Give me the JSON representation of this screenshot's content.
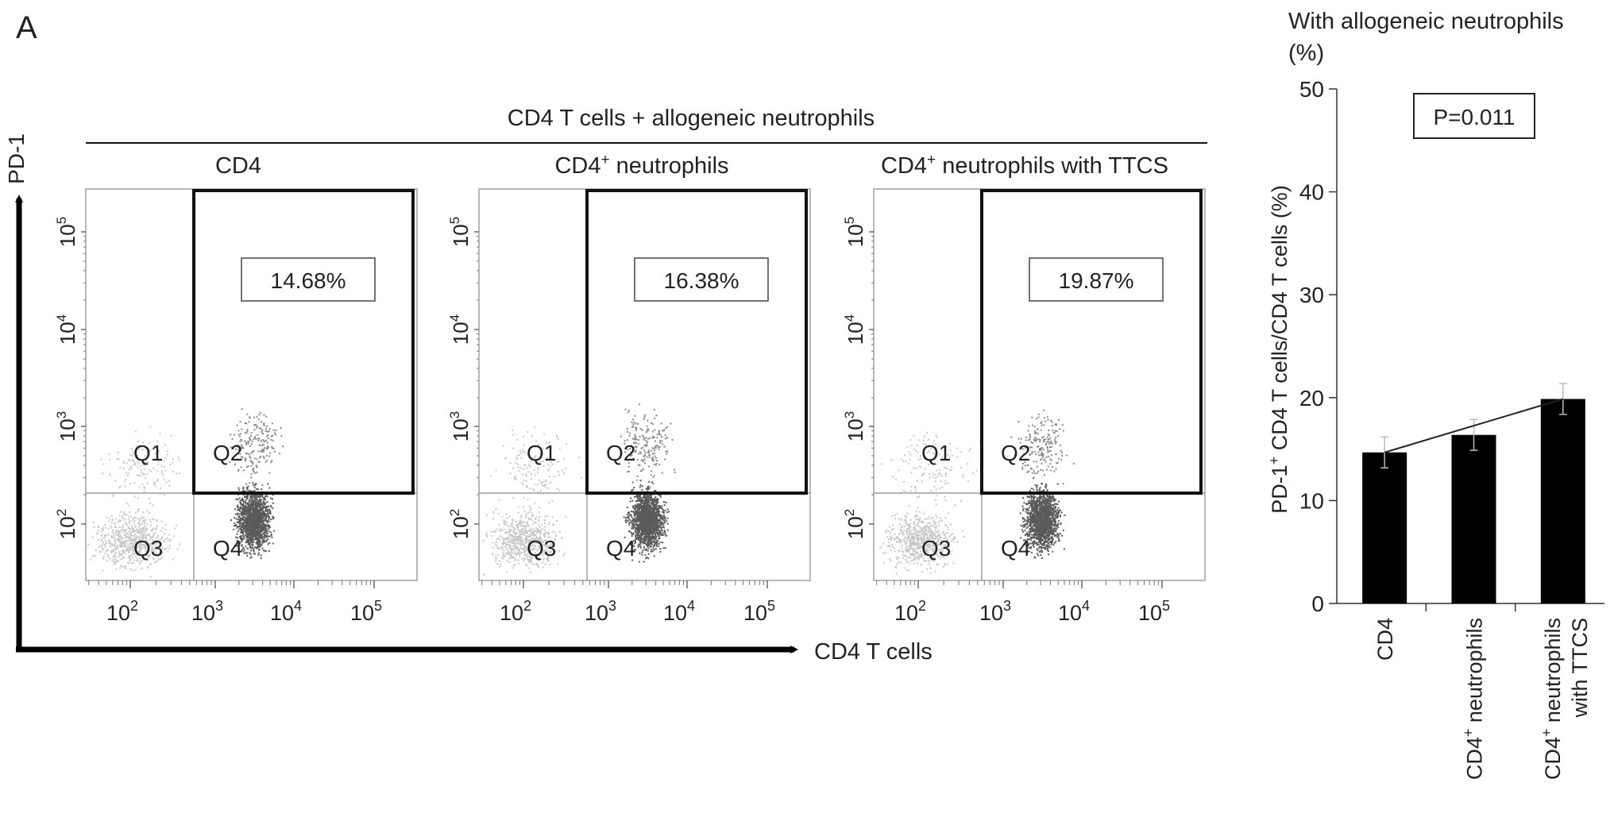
{
  "panel_letter": "A",
  "flow": {
    "group_header": "CD4 T cells + allogeneic neutrophils",
    "y_axis_label": "PD-1",
    "x_axis_label": "CD4 T cells",
    "y_ticks": [
      "10",
      "10",
      "10",
      "10"
    ],
    "y_tick_exponents": [
      "5",
      "4",
      "3",
      "2"
    ],
    "x_ticks": [
      "10",
      "10",
      "10",
      "10"
    ],
    "x_tick_exponents": [
      "2",
      "3",
      "4",
      "5"
    ],
    "quadrant_labels": [
      "Q1",
      "Q2",
      "Q3",
      "Q4"
    ],
    "plots": [
      {
        "title_main": "CD4",
        "title_sup": "",
        "title_rest": "",
        "percent": "14.68%"
      },
      {
        "title_main": "CD4",
        "title_sup": "+",
        "title_rest": " neutrophils",
        "percent": "16.38%"
      },
      {
        "title_main": "CD4",
        "title_sup": "+",
        "title_rest": " neutrophils with TTCS",
        "percent": "19.87%"
      }
    ]
  },
  "bar": {
    "top_title_line1": "With allogeneic neutrophils",
    "top_title_line2": "(%)",
    "ylabel_pre": "PD-1",
    "ylabel_sup": "+",
    "ylabel_post": " CD4 T cells/CD4 T cells (%)",
    "p_value": "P=0.011",
    "category_labels": [
      {
        "line1_main": "CD4",
        "line1_sup": "",
        "line1_rest": "",
        "line2": ""
      },
      {
        "line1_main": "CD4",
        "line1_sup": "+",
        "line1_rest": " neutrophils",
        "line2": ""
      },
      {
        "line1_main": "CD4",
        "line1_sup": "+",
        "line1_rest": " neutrophils",
        "line2": "with TTCS"
      }
    ]
  },
  "chart_data": [
    {
      "type": "bar",
      "categories": [
        "CD4",
        "CD4+ neutrophils",
        "CD4+ neutrophils with TTCS"
      ],
      "values": [
        14.68,
        16.38,
        19.87
      ],
      "error": [
        1.5,
        1.5,
        1.5
      ],
      "ylim": [
        0,
        50
      ],
      "yticks": [
        0,
        10,
        20,
        30,
        40,
        50
      ],
      "trend_line": true,
      "annotation": "P=0.011",
      "ylabel": "PD-1+ CD4 T cells/CD4 T cells (%)",
      "title": "With allogeneic neutrophils (%)"
    }
  ],
  "colors": {
    "bar_fill": "#000000",
    "gate_line": "#111111",
    "dense_dots": "#5a5a5a",
    "light_dots": "#c8c8c8",
    "axis": "#333333"
  }
}
